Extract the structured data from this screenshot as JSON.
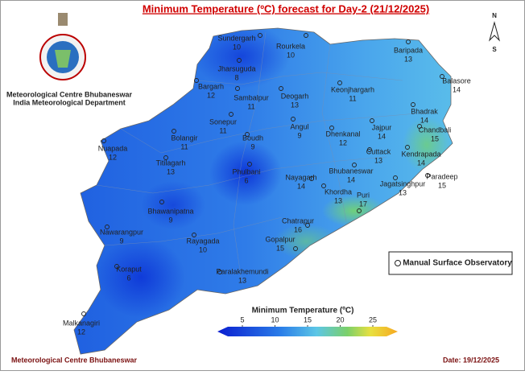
{
  "title": "Minimum Temperature (ºC) forecast for Day-2 (21/12/2025)",
  "org": [
    "Meteorological Centre Bhubaneswar",
    "India Meteorological Department"
  ],
  "compass": {
    "north": "N",
    "south": "S"
  },
  "legend": "Manual Surface Observatory",
  "colorbar": {
    "title": "Minimum Temperature (ºC)",
    "ticks": [
      5,
      10,
      15,
      20,
      25
    ]
  },
  "stations": [
    {
      "name": "Sundergarh",
      "value": 10
    },
    {
      "name": "Rourkela",
      "value": 10
    },
    {
      "name": "Jharsuguda",
      "value": 8
    },
    {
      "name": "Baripada",
      "value": 13
    },
    {
      "name": "Balasore",
      "value": 14
    },
    {
      "name": "Bargarh",
      "value": 12
    },
    {
      "name": "Sambalpur",
      "value": 11
    },
    {
      "name": "Deogarh",
      "value": 13
    },
    {
      "name": "Keonjhargarh",
      "value": 11
    },
    {
      "name": "Bhadrak",
      "value": 14
    },
    {
      "name": "Chandbali",
      "value": 15
    },
    {
      "name": "Angul",
      "value": 9
    },
    {
      "name": "Dhenkanal",
      "value": 12
    },
    {
      "name": "Jajpur",
      "value": 14
    },
    {
      "name": "Sonepur",
      "value": 11
    },
    {
      "name": "Bolangir",
      "value": 11
    },
    {
      "name": "Boudh",
      "value": 9
    },
    {
      "name": "Kendrapada",
      "value": 14
    },
    {
      "name": "Nuapada",
      "value": 12
    },
    {
      "name": "Cuttack",
      "value": 13
    },
    {
      "name": "Titilagarh",
      "value": 13
    },
    {
      "name": "Phulbani",
      "value": 6
    },
    {
      "name": "Paradeep",
      "value": 15
    },
    {
      "name": "Nayagarh",
      "value": 14
    },
    {
      "name": "Bhubaneswar",
      "value": 14
    },
    {
      "name": "Khordha",
      "value": 13
    },
    {
      "name": "Jagatsinghpur",
      "value": 13
    },
    {
      "name": "Puri",
      "value": 17
    },
    {
      "name": "Bhawanipatna",
      "value": 9
    },
    {
      "name": "Chatrapur",
      "value": 16
    },
    {
      "name": "Nawarangpur",
      "value": 9
    },
    {
      "name": "Gopalpur",
      "value": 15
    },
    {
      "name": "Rayagada",
      "value": 10
    },
    {
      "name": "Koraput",
      "value": 6
    },
    {
      "name": "Paralakhemundi",
      "value": 13
    },
    {
      "name": "Malkanagiri",
      "value": 12
    }
  ],
  "footer": {
    "left": "Meteorological Centre Bhubaneswar",
    "right": "Date: 19/12/2025"
  }
}
